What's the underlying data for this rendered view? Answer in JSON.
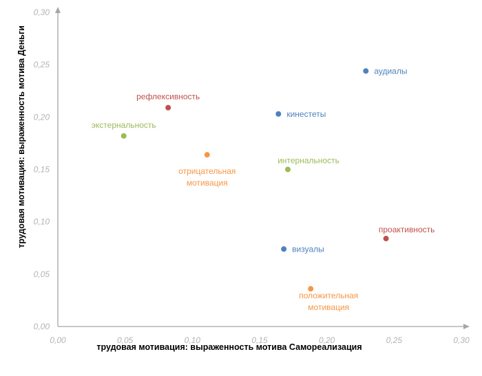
{
  "chart_data": {
    "type": "scatter",
    "title": "",
    "xlabel": "трудовая мотивация: выраженность мотива Самореализация",
    "ylabel": "трудовая мотивация: выраженность мотива Деньги",
    "xlim": [
      0,
      0.3
    ],
    "ylim": [
      0,
      0.3
    ],
    "x_ticks": [
      "0,00",
      "0,05",
      "0,10",
      "0,15",
      "0,20",
      "0,25",
      "0,30"
    ],
    "y_ticks": [
      "0,00",
      "0,05",
      "0,10",
      "0,15",
      "0,20",
      "0,25",
      "0,30"
    ],
    "grid": false,
    "legend": "none",
    "colors": {
      "blue": "#4f81bd",
      "red": "#c0504d",
      "green": "#9bbb59",
      "orange": "#f79646",
      "axis": "#a6a6a6",
      "tick_text": "#b3b3b3"
    },
    "points": [
      {
        "label": "аудиалы",
        "x": 0.229,
        "y": 0.244,
        "color": "blue",
        "label_lines": [
          "аудиалы"
        ],
        "anchor": "right"
      },
      {
        "label": "кинестеты",
        "x": 0.164,
        "y": 0.203,
        "color": "blue",
        "label_lines": [
          "кинестеты"
        ],
        "anchor": "right"
      },
      {
        "label": "визуалы",
        "x": 0.168,
        "y": 0.074,
        "color": "blue",
        "label_lines": [
          "визуалы"
        ],
        "anchor": "right"
      },
      {
        "label": "рефлексивность",
        "x": 0.082,
        "y": 0.209,
        "color": "red",
        "label_lines": [
          "рефлексивность"
        ],
        "anchor": "above"
      },
      {
        "label": "проактивность",
        "x": 0.244,
        "y": 0.084,
        "color": "red",
        "label_lines": [
          "проактивность"
        ],
        "anchor": "above-right"
      },
      {
        "label": "экстернальность",
        "x": 0.049,
        "y": 0.182,
        "color": "green",
        "label_lines": [
          "экстернальность"
        ],
        "anchor": "above"
      },
      {
        "label": "интернальность",
        "x": 0.171,
        "y": 0.15,
        "color": "green",
        "label_lines": [
          "интернальность"
        ],
        "anchor": "above-right"
      },
      {
        "label": "отрицательная мотивация",
        "x": 0.111,
        "y": 0.164,
        "color": "orange",
        "label_lines": [
          "отрицательная",
          "мотивация"
        ],
        "anchor": "below"
      },
      {
        "label": "положительная мотивация",
        "x": 0.188,
        "y": 0.036,
        "color": "orange",
        "label_lines": [
          "положительная",
          "мотивация"
        ],
        "anchor": "below-right"
      }
    ]
  }
}
